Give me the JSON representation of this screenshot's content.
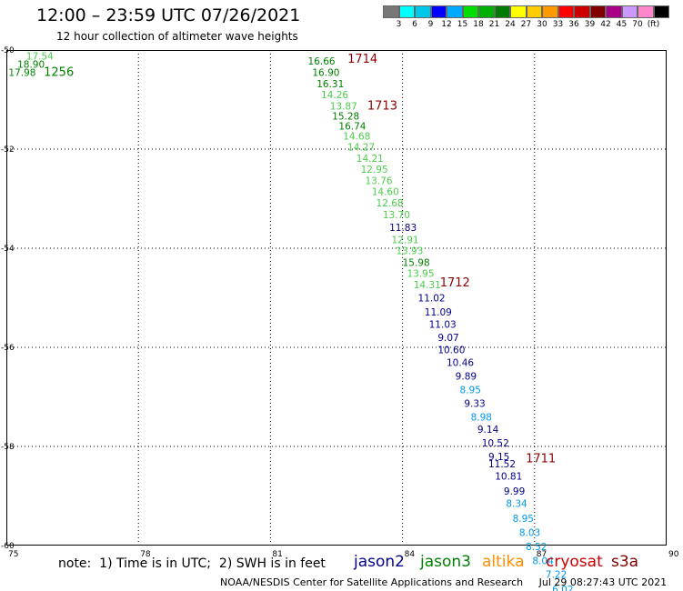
{
  "header": {
    "title": "12:00 – 23:59 UTC 07/26/2021",
    "subtitle": "12 hour collection of altimeter wave heights"
  },
  "colors": {
    "jason2": "#00008b",
    "jason3": "#008000",
    "altika": "#ff8c00",
    "cryosat": "#cc0000",
    "s3a": "#800000",
    "deepskyblue": "#0098e8",
    "lightgreen": "#4ccc4c",
    "passlabel": "#8b0000"
  },
  "legend": {
    "swatches": [
      "#777777",
      "#00ffff",
      "#00c8e8",
      "#0000ff",
      "#00aaff",
      "#00dd00",
      "#00b000",
      "#007a00",
      "#ffff00",
      "#ffcc00",
      "#ff9900",
      "#ff0000",
      "#cc0000",
      "#800000",
      "#aa0088",
      "#cc99ff",
      "#ff88cc",
      "#000000"
    ],
    "labels": [
      "3",
      "6",
      "9",
      "12",
      "15",
      "18",
      "21",
      "24",
      "27",
      "30",
      "33",
      "36",
      "39",
      "42",
      "45",
      "70",
      "(ft)"
    ]
  },
  "axes": {
    "x_ticks": [
      "75",
      "78",
      "81",
      "84",
      "87",
      "90"
    ],
    "y_ticks": [
      "-50",
      "-52",
      "-54",
      "-56",
      "-58",
      "-60"
    ]
  },
  "map_data": {
    "lon_range": [
      75,
      90
    ],
    "lat_range": [
      -60,
      -50
    ],
    "points": [
      {
        "lon": 75.45,
        "lat": -50.12,
        "v": "17.54",
        "c": "lightgreen"
      },
      {
        "lon": 75.25,
        "lat": -50.28,
        "v": "18.90",
        "c": "jason3"
      },
      {
        "lon": 75.05,
        "lat": -50.45,
        "v": "17.98",
        "c": "jason3"
      },
      {
        "lon": 81.85,
        "lat": -50.22,
        "v": "16.66",
        "c": "jason3"
      },
      {
        "lon": 81.95,
        "lat": -50.45,
        "v": "16.90",
        "c": "jason3"
      },
      {
        "lon": 82.05,
        "lat": -50.68,
        "v": "16.31",
        "c": "jason3"
      },
      {
        "lon": 82.15,
        "lat": -50.9,
        "v": "14.26",
        "c": "lightgreen"
      },
      {
        "lon": 82.35,
        "lat": -51.13,
        "v": "13.87",
        "c": "lightgreen"
      },
      {
        "lon": 82.4,
        "lat": -51.33,
        "v": "15.28",
        "c": "jason3"
      },
      {
        "lon": 82.55,
        "lat": -51.53,
        "v": "16.74",
        "c": "jason3"
      },
      {
        "lon": 82.65,
        "lat": -51.73,
        "v": "14.68",
        "c": "lightgreen"
      },
      {
        "lon": 82.75,
        "lat": -51.95,
        "v": "14.27",
        "c": "lightgreen"
      },
      {
        "lon": 82.95,
        "lat": -52.18,
        "v": "14.21",
        "c": "lightgreen"
      },
      {
        "lon": 83.05,
        "lat": -52.4,
        "v": "12.95",
        "c": "lightgreen"
      },
      {
        "lon": 83.15,
        "lat": -52.63,
        "v": "13.76",
        "c": "lightgreen"
      },
      {
        "lon": 83.3,
        "lat": -52.85,
        "v": "14.60",
        "c": "lightgreen"
      },
      {
        "lon": 83.4,
        "lat": -53.08,
        "v": "12.68",
        "c": "lightgreen"
      },
      {
        "lon": 83.55,
        "lat": -53.32,
        "v": "13.70",
        "c": "lightgreen"
      },
      {
        "lon": 83.7,
        "lat": -53.58,
        "v": "11.83",
        "c": "jason2"
      },
      {
        "lon": 83.75,
        "lat": -53.83,
        "v": "12.91",
        "c": "lightgreen"
      },
      {
        "lon": 83.85,
        "lat": -54.05,
        "v": "13.93",
        "c": "lightgreen"
      },
      {
        "lon": 84.0,
        "lat": -54.28,
        "v": "15.98",
        "c": "jason3"
      },
      {
        "lon": 84.1,
        "lat": -54.5,
        "v": "13.95",
        "c": "lightgreen"
      },
      {
        "lon": 84.25,
        "lat": -54.73,
        "v": "14.31",
        "c": "lightgreen"
      },
      {
        "lon": 84.35,
        "lat": -55.0,
        "v": "11.02",
        "c": "jason2"
      },
      {
        "lon": 84.5,
        "lat": -55.28,
        "v": "11.09",
        "c": "jason2"
      },
      {
        "lon": 84.6,
        "lat": -55.53,
        "v": "11.03",
        "c": "jason2"
      },
      {
        "lon": 84.8,
        "lat": -55.8,
        "v": "9.07",
        "c": "jason2"
      },
      {
        "lon": 84.8,
        "lat": -56.05,
        "v": "10.60",
        "c": "jason2"
      },
      {
        "lon": 85.0,
        "lat": -56.3,
        "v": "10.46",
        "c": "jason2"
      },
      {
        "lon": 85.2,
        "lat": -56.58,
        "v": "9.89",
        "c": "jason2"
      },
      {
        "lon": 85.3,
        "lat": -56.85,
        "v": "8.95",
        "c": "deepskyblue"
      },
      {
        "lon": 85.4,
        "lat": -57.13,
        "v": "9.33",
        "c": "jason2"
      },
      {
        "lon": 85.55,
        "lat": -57.4,
        "v": "8.98",
        "c": "deepskyblue"
      },
      {
        "lon": 85.7,
        "lat": -57.65,
        "v": "9.14",
        "c": "jason2"
      },
      {
        "lon": 85.8,
        "lat": -57.93,
        "v": "10.52",
        "c": "jason2"
      },
      {
        "lon": 85.95,
        "lat": -58.2,
        "v": "9.15",
        "c": "jason2"
      },
      {
        "lon": 85.95,
        "lat": -58.35,
        "v": "11.52",
        "c": "jason2"
      },
      {
        "lon": 86.1,
        "lat": -58.6,
        "v": "10.81",
        "c": "jason2"
      },
      {
        "lon": 86.3,
        "lat": -58.9,
        "v": "9.99",
        "c": "jason2"
      },
      {
        "lon": 86.35,
        "lat": -59.15,
        "v": "8.34",
        "c": "deepskyblue"
      },
      {
        "lon": 86.5,
        "lat": -59.45,
        "v": "8.95",
        "c": "deepskyblue"
      },
      {
        "lon": 86.65,
        "lat": -59.73,
        "v": "8.03",
        "c": "deepskyblue"
      },
      {
        "lon": 86.8,
        "lat": -60.02,
        "v": "8.52",
        "c": "deepskyblue"
      },
      {
        "lon": 86.95,
        "lat": -60.3,
        "v": "8.04",
        "c": "deepskyblue"
      },
      {
        "lon": 87.25,
        "lat": -60.58,
        "v": "7.22",
        "c": "deepskyblue"
      },
      {
        "lon": 87.4,
        "lat": -60.88,
        "v": "6.02",
        "c": "deepskyblue"
      }
    ],
    "pass_labels": [
      {
        "lon": 75.85,
        "lat": -50.45,
        "t": "1256",
        "c": "jason3"
      },
      {
        "lon": 82.75,
        "lat": -50.18,
        "t": "1714",
        "c": "passlabel"
      },
      {
        "lon": 83.2,
        "lat": -51.13,
        "t": "1713",
        "c": "passlabel"
      },
      {
        "lon": 84.85,
        "lat": -54.7,
        "t": "1712",
        "c": "passlabel"
      },
      {
        "lon": 86.8,
        "lat": -58.25,
        "t": "1711",
        "c": "passlabel"
      }
    ]
  },
  "footer": {
    "note": "note:  1) Time is in UTC;  2) SWH is in feet",
    "satellites": [
      "jason2",
      "jason3",
      "altika",
      "cryosat",
      "s3a"
    ],
    "credit": "NOAA/NESDIS Center for Satellite Applications and Research     Jul 29 08:27:43 UTC 2021"
  }
}
